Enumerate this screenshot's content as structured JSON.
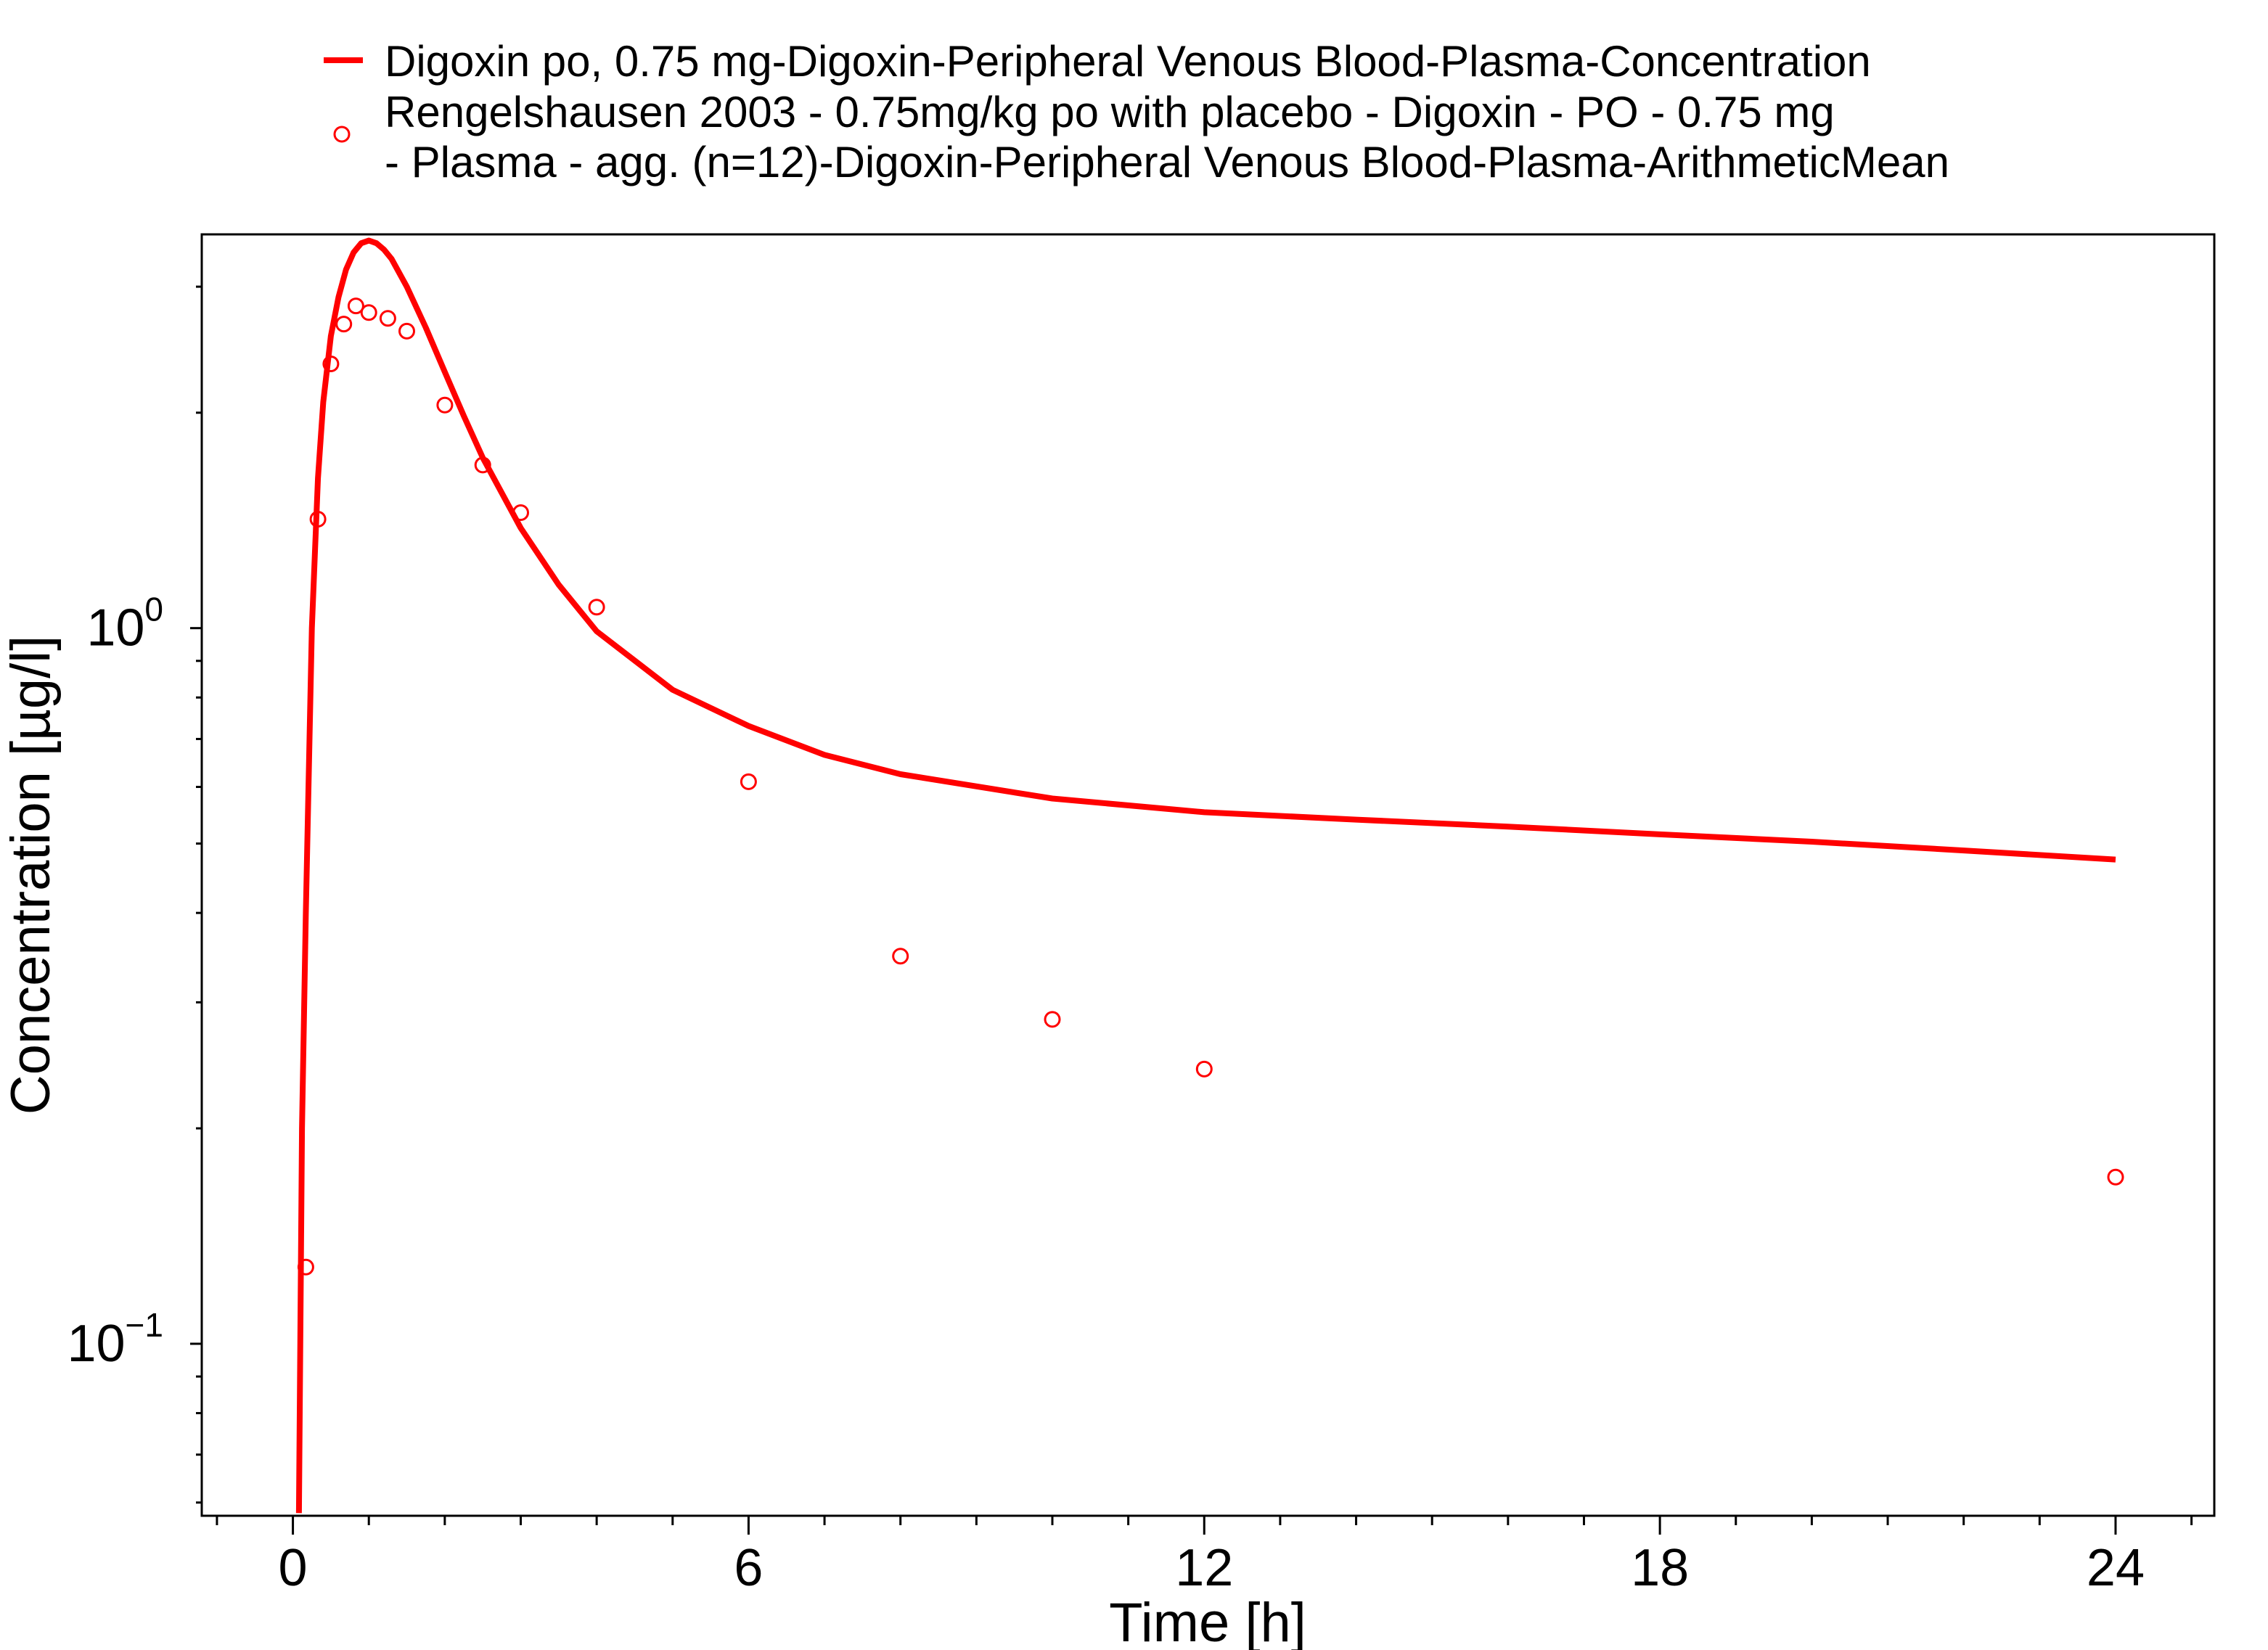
{
  "chart_data": {
    "type": "line",
    "xlabel": "Time [h]",
    "ylabel": "Concentration [µg/l]",
    "xlim": [
      -1.2,
      25.3
    ],
    "ylim": [
      0.0575,
      3.55
    ],
    "yscale": "log",
    "grid": false,
    "legend_position": "top",
    "x_ticks": [
      {
        "value": 0,
        "label": "0"
      },
      {
        "value": 6,
        "label": "6"
      },
      {
        "value": 12,
        "label": "12"
      },
      {
        "value": 18,
        "label": "18"
      },
      {
        "value": 24,
        "label": "24"
      }
    ],
    "y_ticks": [
      {
        "value": 1,
        "base": "10",
        "exp": "0"
      },
      {
        "value": 0.1,
        "base": "10",
        "exp": "−1"
      }
    ],
    "series": [
      {
        "name": "Digoxin po, 0.75 mg-Digoxin-Peripheral Venous Blood-Plasma-Concentration",
        "kind": "line",
        "color": "#ff0000",
        "x": [
          0.08,
          0.12,
          0.17,
          0.25,
          0.33,
          0.4,
          0.5,
          0.6,
          0.7,
          0.8,
          0.9,
          1.0,
          1.1,
          1.2,
          1.3,
          1.5,
          1.75,
          2.0,
          2.25,
          2.5,
          3.0,
          3.5,
          4.0,
          5.0,
          6.0,
          7.0,
          8.0,
          10.0,
          12.0,
          14.0,
          16.0,
          18.0,
          20.0,
          22.0,
          24.0
        ],
        "y": [
          0.058,
          0.2,
          0.4,
          1.0,
          1.62,
          2.07,
          2.56,
          2.9,
          3.17,
          3.35,
          3.45,
          3.48,
          3.45,
          3.38,
          3.28,
          3.0,
          2.63,
          2.28,
          1.98,
          1.73,
          1.38,
          1.15,
          0.99,
          0.82,
          0.73,
          0.665,
          0.625,
          0.578,
          0.553,
          0.54,
          0.528,
          0.515,
          0.503,
          0.489,
          0.475
        ]
      },
      {
        "name": "Rengelshausen 2003 - 0.75mg/kg po with placebo - Digoxin - PO - 0.75 mg - Plasma - agg. (n=12)-Digoxin-Peripheral Venous Blood-Plasma-ArithmeticMean",
        "kind": "scatter",
        "color": "#ff0000",
        "x": [
          0.17,
          0.33,
          0.5,
          0.67,
          0.83,
          1.0,
          1.25,
          1.5,
          2.0,
          2.5,
          3.0,
          4.0,
          6.0,
          8.0,
          10.0,
          12.0,
          24.0
        ],
        "y": [
          0.128,
          1.42,
          2.34,
          2.66,
          2.82,
          2.76,
          2.71,
          2.6,
          2.05,
          1.69,
          1.45,
          1.07,
          0.61,
          0.348,
          0.284,
          0.242,
          0.171
        ]
      }
    ]
  }
}
